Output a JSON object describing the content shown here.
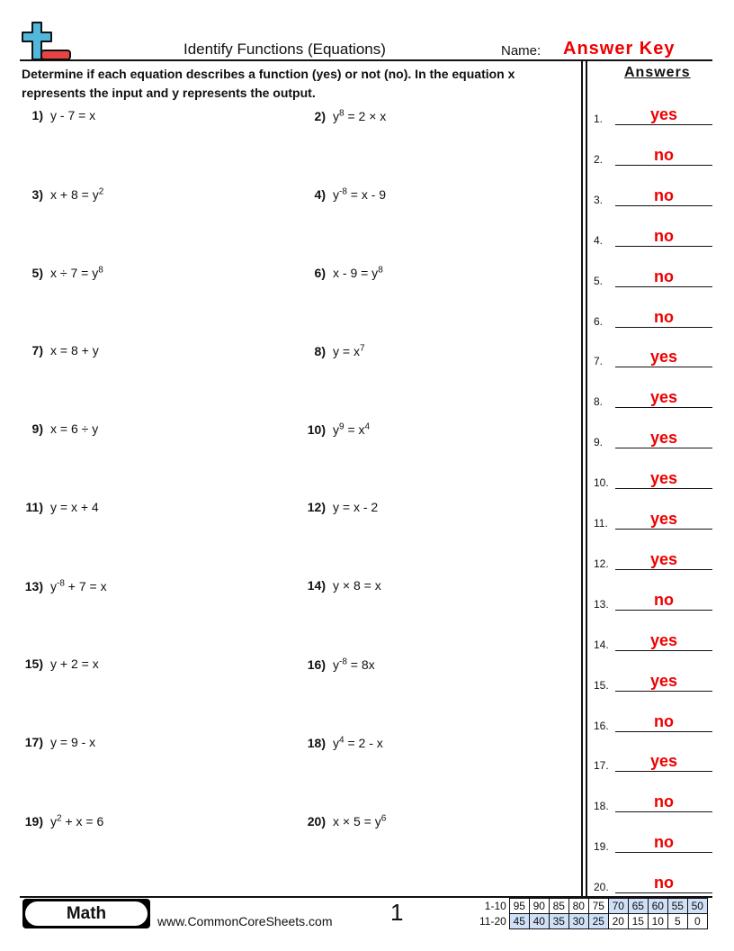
{
  "header": {
    "title": "Identify Functions (Equations)",
    "name_label": "Name:",
    "name_value": "Answer Key"
  },
  "instructions": "Determine if each equation describes a function (yes) or not (no). In the equation x represents the input and y represents the output.",
  "answers_heading": "Answers",
  "problems": [
    {
      "label": "1)",
      "parts": [
        {
          "text": "y - 7 = x"
        }
      ]
    },
    {
      "label": "2)",
      "parts": [
        {
          "text": "y"
        },
        {
          "sup": "8"
        },
        {
          "text": " = 2 × x"
        }
      ]
    },
    {
      "label": "3)",
      "parts": [
        {
          "text": "x + 8 = y"
        },
        {
          "sup": "2"
        }
      ]
    },
    {
      "label": "4)",
      "parts": [
        {
          "text": "y"
        },
        {
          "sup": "-8"
        },
        {
          "text": " = x - 9"
        }
      ]
    },
    {
      "label": "5)",
      "parts": [
        {
          "text": "x ÷ 7 = y"
        },
        {
          "sup": "8"
        }
      ]
    },
    {
      "label": "6)",
      "parts": [
        {
          "text": "x - 9 = y"
        },
        {
          "sup": "8"
        }
      ]
    },
    {
      "label": "7)",
      "parts": [
        {
          "text": "x = 8 + y"
        }
      ]
    },
    {
      "label": "8)",
      "parts": [
        {
          "text": "y = x"
        },
        {
          "sup": "7"
        }
      ]
    },
    {
      "label": "9)",
      "parts": [
        {
          "text": "x = 6 ÷ y"
        }
      ]
    },
    {
      "label": "10)",
      "parts": [
        {
          "text": "y"
        },
        {
          "sup": "9"
        },
        {
          "text": " = x"
        },
        {
          "sup": "4"
        }
      ]
    },
    {
      "label": "11)",
      "parts": [
        {
          "text": "y = x + 4"
        }
      ]
    },
    {
      "label": "12)",
      "parts": [
        {
          "text": "y = x - 2"
        }
      ]
    },
    {
      "label": "13)",
      "parts": [
        {
          "text": "y"
        },
        {
          "sup": "-8"
        },
        {
          "text": " + 7 = x"
        }
      ]
    },
    {
      "label": "14)",
      "parts": [
        {
          "text": "y × 8 = x"
        }
      ]
    },
    {
      "label": "15)",
      "parts": [
        {
          "text": "y + 2 = x"
        }
      ]
    },
    {
      "label": "16)",
      "parts": [
        {
          "text": "y"
        },
        {
          "sup": "-8"
        },
        {
          "text": " = 8x"
        }
      ]
    },
    {
      "label": "17)",
      "parts": [
        {
          "text": "y = 9 - x"
        }
      ]
    },
    {
      "label": "18)",
      "parts": [
        {
          "text": "y"
        },
        {
          "sup": "4"
        },
        {
          "text": " = 2 - x"
        }
      ]
    },
    {
      "label": "19)",
      "parts": [
        {
          "text": "y"
        },
        {
          "sup": "2"
        },
        {
          "text": " + x = 6"
        }
      ]
    },
    {
      "label": "20)",
      "parts": [
        {
          "text": "x × 5 = y"
        },
        {
          "sup": "6"
        }
      ]
    }
  ],
  "answers": [
    {
      "n": "1.",
      "v": "yes"
    },
    {
      "n": "2.",
      "v": "no"
    },
    {
      "n": "3.",
      "v": "no"
    },
    {
      "n": "4.",
      "v": "no"
    },
    {
      "n": "5.",
      "v": "no"
    },
    {
      "n": "6.",
      "v": "no"
    },
    {
      "n": "7.",
      "v": "yes"
    },
    {
      "n": "8.",
      "v": "yes"
    },
    {
      "n": "9.",
      "v": "yes"
    },
    {
      "n": "10.",
      "v": "yes"
    },
    {
      "n": "11.",
      "v": "yes"
    },
    {
      "n": "12.",
      "v": "yes"
    },
    {
      "n": "13.",
      "v": "no"
    },
    {
      "n": "14.",
      "v": "yes"
    },
    {
      "n": "15.",
      "v": "yes"
    },
    {
      "n": "16.",
      "v": "no"
    },
    {
      "n": "17.",
      "v": "yes"
    },
    {
      "n": "18.",
      "v": "no"
    },
    {
      "n": "19.",
      "v": "no"
    },
    {
      "n": "20.",
      "v": "no"
    }
  ],
  "footer": {
    "subject": "Math",
    "site": "www.CommonCoreSheets.com",
    "page": "1",
    "score_rows": [
      {
        "label": "1-10",
        "values": [
          "95",
          "90",
          "85",
          "80",
          "75",
          "70",
          "65",
          "60",
          "55",
          "50"
        ],
        "highlight": [
          false,
          false,
          false,
          false,
          false,
          true,
          true,
          true,
          true,
          true
        ]
      },
      {
        "label": "11-20",
        "values": [
          "45",
          "40",
          "35",
          "30",
          "25",
          "20",
          "15",
          "10",
          "5",
          "0"
        ],
        "highlight": [
          true,
          true,
          true,
          true,
          true,
          false,
          false,
          false,
          false,
          false
        ]
      }
    ]
  },
  "colors": {
    "answer": "#ee0000",
    "logo_plus": "#4fb8dc",
    "logo_minus": "#e84444",
    "score_highlight": "#cfe0f7"
  }
}
